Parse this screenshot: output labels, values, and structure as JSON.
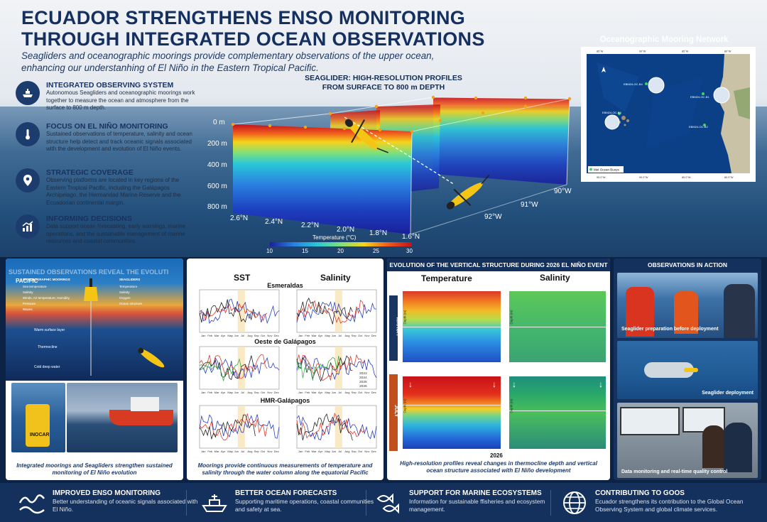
{
  "header": {
    "title_line1": "ECUADOR STRENGTHENS ENSO MONITORING",
    "title_line2": "THROUGH INTEGRATED OCEAN OBSERVATIONS",
    "subtitle": "Seagliders and oceanographic moorings provide complementary observations of the upper ocean, enhancing our understanhing of El Niño in the Eastern Tropical Pacific."
  },
  "features": [
    {
      "icon": "ship-icon",
      "title": "INTEGRATED OBSERVING SYSTEM",
      "text": "Autonomous Seagliders and oceanographic moorings work together to measure the ocean and atmosphere from the surface to 800 m depth."
    },
    {
      "icon": "thermometer-icon",
      "title": "FOCUS ON EL NIÑO MONITORING",
      "text": "Sustained observations of temperature, salinity and ocean structure help detect and track oceanic signals associated with the development and evolution of El Niño events."
    },
    {
      "icon": "location-pin-icon",
      "title": "STRATEGIC COVERAGE",
      "text": "Observing platforms are located in key regions of the Eastern Tropical Pacific, including the Galápagos Archipelago, the Hermandad Marine Reserve and the Ecuadorian continental margin."
    },
    {
      "icon": "chart-icon",
      "title": "INFORMING DECISIONS",
      "text": "Data support ocean forecasting, early warnings, marine operations, and the sustainable management of marine resources and coastal communities."
    }
  ],
  "seaglider": {
    "title_line1": "SEAGLIDER: HIGH-RESOLUTION PROFILES",
    "title_line2": "FROM SURFACE TO 800 m DEPTH",
    "depths": [
      "0 m",
      "200 m",
      "400 m",
      "600 m",
      "800 m"
    ],
    "lats": [
      "2.6°N",
      "2.4°N",
      "2.2°N",
      "2.0°N",
      "1.8°N",
      "1.6°N"
    ],
    "lons": [
      "92°W",
      "91°W",
      "90°W"
    ],
    "colorbar_label": "Temperature (°C)",
    "colorbar_ticks": [
      "10",
      "15",
      "20",
      "25",
      "30"
    ]
  },
  "map": {
    "title": "Oceanographic Mooring Network",
    "labels": [
      "EBM24-OC-B4",
      "EBM24-OC-B1",
      "EBM24-OC-B3",
      "EBM24-OC-B2"
    ],
    "legend": "Met Ocean Buoys",
    "top_ticks": [
      "85°W",
      "90°W",
      "85°W",
      "80°W"
    ],
    "bottom_ticks": [
      "95.0°W",
      "90.0°W",
      "85.0°W",
      "80.0°W"
    ],
    "colors": {
      "ocean_deep": "#0b3f86",
      "land": "#c9c2a7"
    }
  },
  "panel1": {
    "overlay_title": "SUSTAINED OBSERVATIONS REVEAL THE EVOLUTI",
    "overlay_sub": "PACIFIC",
    "legend_left_head": "OCEANOGRAPHIC MOORINGS",
    "legend_right_head": "SEAGLIDERS",
    "legend_left_items": [
      "Sea temperature",
      "Salinity",
      "Winds, Air temperature, Humidity, Pressure",
      "Waves"
    ],
    "legend_right_items": [
      "Temperature",
      "Salinity",
      "Oxygen",
      "Ocean structure"
    ],
    "layers": [
      "Warm surface layer",
      "Thermocline",
      "Cold deep water"
    ],
    "buoy_text": "INOCAR",
    "caption": "Integrated moorings and Seagliders strengthen sustained monitoring of El Niño evolution"
  },
  "panel2": {
    "col_titles": [
      "SST",
      "Salinity"
    ],
    "stations": [
      "Esmeraldas",
      "Oeste de Galápagos",
      "HMR-Galápagos"
    ],
    "months": [
      "Jan",
      "Feb",
      "Mar",
      "Apr",
      "May",
      "Jun",
      "Jul",
      "Aug",
      "Sep",
      "Oct",
      "Nov",
      "Dec"
    ],
    "legend_years": [
      "2023",
      "2024",
      "2025",
      "2026"
    ],
    "caption": "Moorings provide continuous measurements of temperature and salinity through the water column along the equatorial Pacific"
  },
  "panel3": {
    "head": "EVOLUTION OF THE VERTICAL STRUCTURE DURING 2026 EL NIÑO EVENT",
    "col_titles": [
      "Temperature",
      "Salinity"
    ],
    "row_labels": [
      "MARCH",
      "JULY"
    ],
    "axis_ylabel": "Depth (m)",
    "year": "2026",
    "caption": "High-resolution profiles reveal changes in thermocline depth and vertical ocean structure associated with El Niño development"
  },
  "panel4": {
    "head": "OBSERVATIONS IN ACTION",
    "photos": [
      "Seaglider preparation before deployment",
      "Seaglider deployment",
      "Data monitoring and real-time quality control"
    ]
  },
  "footer": [
    {
      "icon": "waves-icon",
      "title": "IMPROVED ENSO MONITORING",
      "text": "Better understanding of oceanic signals associated with El Niño."
    },
    {
      "icon": "ship-icon",
      "title": "BETTER OCEAN FORECASTS",
      "text": "Supporting maritime operations, coastal communities and safety at sea."
    },
    {
      "icon": "fish-icon",
      "title": "SUPPORT FOR MARINE ECOSYSTEMS",
      "text": "Information for sustainable ffisheries and ecosystem management."
    },
    {
      "icon": "globe-icon",
      "title": "CONTRIBUTING TO GOOS",
      "text": "Ecuador strengthens its contribution to the Global Ocean Observing System and global climate services."
    }
  ]
}
